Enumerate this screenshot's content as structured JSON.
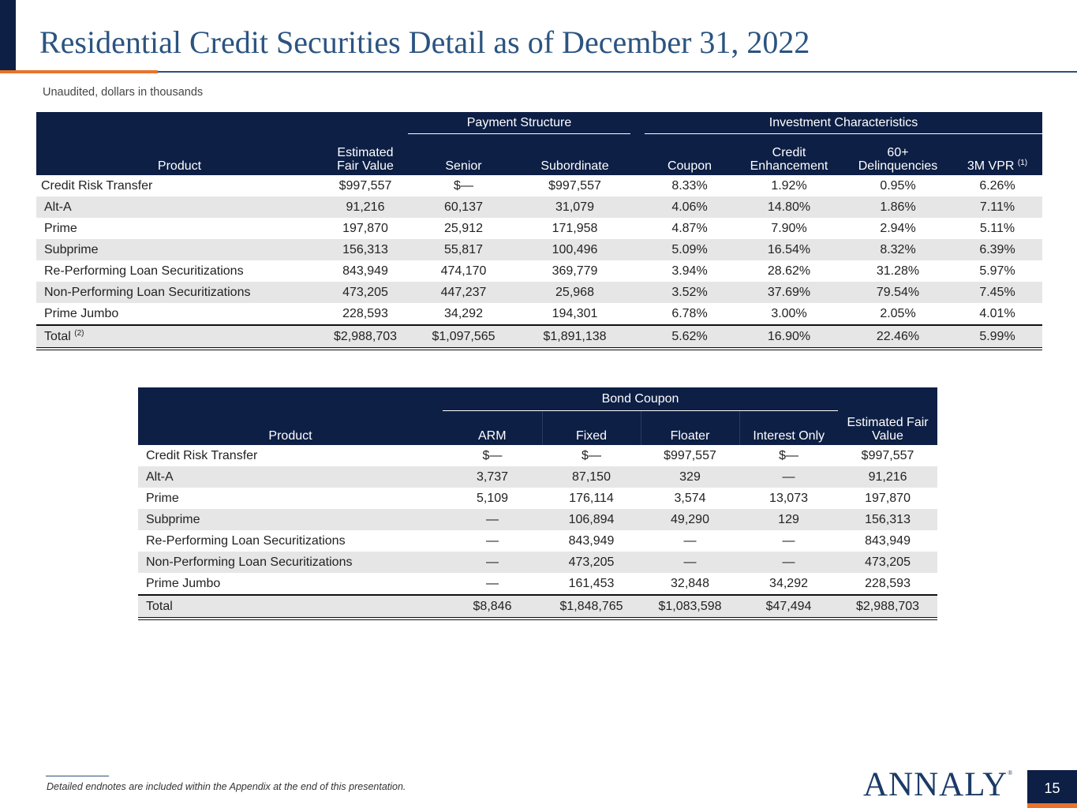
{
  "page": {
    "title": "Residential Credit Securities Detail as of December 31, 2022",
    "subtitle": "Unaudited, dollars in thousands",
    "footnote": "Detailed endnotes are included within the Appendix at the end of this presentation.",
    "logo": "ANNALY",
    "logo_mark": "®",
    "page_number": "15"
  },
  "table1": {
    "group_payment": "Payment Structure",
    "group_investment": "Investment Characteristics",
    "col_product": "Product",
    "col_fair_value": "Estimated Fair Value",
    "col_senior": "Senior",
    "col_subordinate": "Subordinate",
    "col_coupon": "Coupon",
    "col_credit_enh": "Credit Enhancement",
    "col_delinq": "60+ Delinquencies",
    "col_vpr": "3M VPR",
    "col_vpr_note": "(1)",
    "rows": [
      {
        "product": "Credit Risk Transfer",
        "fair_value": "$997,557",
        "senior": "$—",
        "subordinate": "$997,557",
        "coupon": "8.33%",
        "credit_enh": "1.92%",
        "delinq": "0.95%",
        "vpr": "6.26%"
      },
      {
        "product": "Alt-A",
        "fair_value": "91,216",
        "senior": "60,137",
        "subordinate": "31,079",
        "coupon": "4.06%",
        "credit_enh": "14.80%",
        "delinq": "1.86%",
        "vpr": "7.11%"
      },
      {
        "product": "Prime",
        "fair_value": "197,870",
        "senior": "25,912",
        "subordinate": "171,958",
        "coupon": "4.87%",
        "credit_enh": "7.90%",
        "delinq": "2.94%",
        "vpr": "5.11%"
      },
      {
        "product": "Subprime",
        "fair_value": "156,313",
        "senior": "55,817",
        "subordinate": "100,496",
        "coupon": "5.09%",
        "credit_enh": "16.54%",
        "delinq": "8.32%",
        "vpr": "6.39%"
      },
      {
        "product": "Re-Performing Loan Securitizations",
        "fair_value": "843,949",
        "senior": "474,170",
        "subordinate": "369,779",
        "coupon": "3.94%",
        "credit_enh": "28.62%",
        "delinq": "31.28%",
        "vpr": "5.97%"
      },
      {
        "product": "Non-Performing Loan Securitizations",
        "fair_value": "473,205",
        "senior": "447,237",
        "subordinate": "25,968",
        "coupon": "3.52%",
        "credit_enh": "37.69%",
        "delinq": "79.54%",
        "vpr": "7.45%"
      },
      {
        "product": "Prime Jumbo",
        "fair_value": "228,593",
        "senior": "34,292",
        "subordinate": "194,301",
        "coupon": "6.78%",
        "credit_enh": "3.00%",
        "delinq": "2.05%",
        "vpr": "4.01%"
      }
    ],
    "total": {
      "product": "Total",
      "note": "(2)",
      "fair_value": "$2,988,703",
      "senior": "$1,097,565",
      "subordinate": "$1,891,138",
      "coupon": "5.62%",
      "credit_enh": "16.90%",
      "delinq": "22.46%",
      "vpr": "5.99%"
    }
  },
  "table2": {
    "group_bond": "Bond Coupon",
    "col_product": "Product",
    "col_arm": "ARM",
    "col_fixed": "Fixed",
    "col_floater": "Floater",
    "col_io": "Interest Only",
    "col_fair_value": "Estimated Fair Value",
    "rows": [
      {
        "product": "Credit Risk Transfer",
        "arm": "$—",
        "fixed": "$—",
        "floater": "$997,557",
        "io": "$—",
        "fair_value": "$997,557"
      },
      {
        "product": "Alt-A",
        "arm": "3,737",
        "fixed": "87,150",
        "floater": "329",
        "io": "—",
        "fair_value": "91,216"
      },
      {
        "product": "Prime",
        "arm": "5,109",
        "fixed": "176,114",
        "floater": "3,574",
        "io": "13,073",
        "fair_value": "197,870"
      },
      {
        "product": "Subprime",
        "arm": "—",
        "fixed": "106,894",
        "floater": "49,290",
        "io": "129",
        "fair_value": "156,313"
      },
      {
        "product": "Re-Performing Loan Securitizations",
        "arm": "—",
        "fixed": "843,949",
        "floater": "—",
        "io": "—",
        "fair_value": "843,949"
      },
      {
        "product": "Non-Performing Loan Securitizations",
        "arm": "—",
        "fixed": "473,205",
        "floater": "—",
        "io": "—",
        "fair_value": "473,205"
      },
      {
        "product": "Prime Jumbo",
        "arm": "—",
        "fixed": "161,453",
        "floater": "32,848",
        "io": "34,292",
        "fair_value": "228,593"
      }
    ],
    "total": {
      "product": "Total",
      "arm": "$8,846",
      "fixed": "$1,848,765",
      "floater": "$1,083,598",
      "io": "$47,494",
      "fair_value": "$2,988,703"
    }
  }
}
